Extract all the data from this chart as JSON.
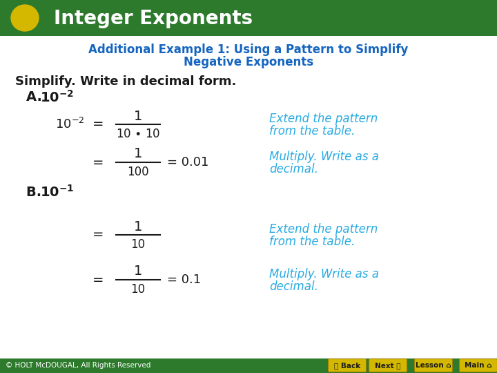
{
  "title_bar_color": "#2D7A2D",
  "title_text": "Integer Exponents",
  "title_text_color": "#FFFFFF",
  "circle_color": "#D4B800",
  "subtitle_line1": "Additional Example 1: Using a Pattern to Simplify",
  "subtitle_line2": "Negative Exponents",
  "subtitle_color": "#1565C0",
  "body_bg": "#FFFFFF",
  "black": "#1a1a1a",
  "teal_italic": "#29ABE2",
  "footer_bg": "#2D7A2D",
  "footer_text_color": "#FFFFFF",
  "footer_copyright": "© HOLT McDOUGAL, All Rights Reserved",
  "nav_button_color": "#D4B800",
  "nav_button_border": "#9A8000"
}
